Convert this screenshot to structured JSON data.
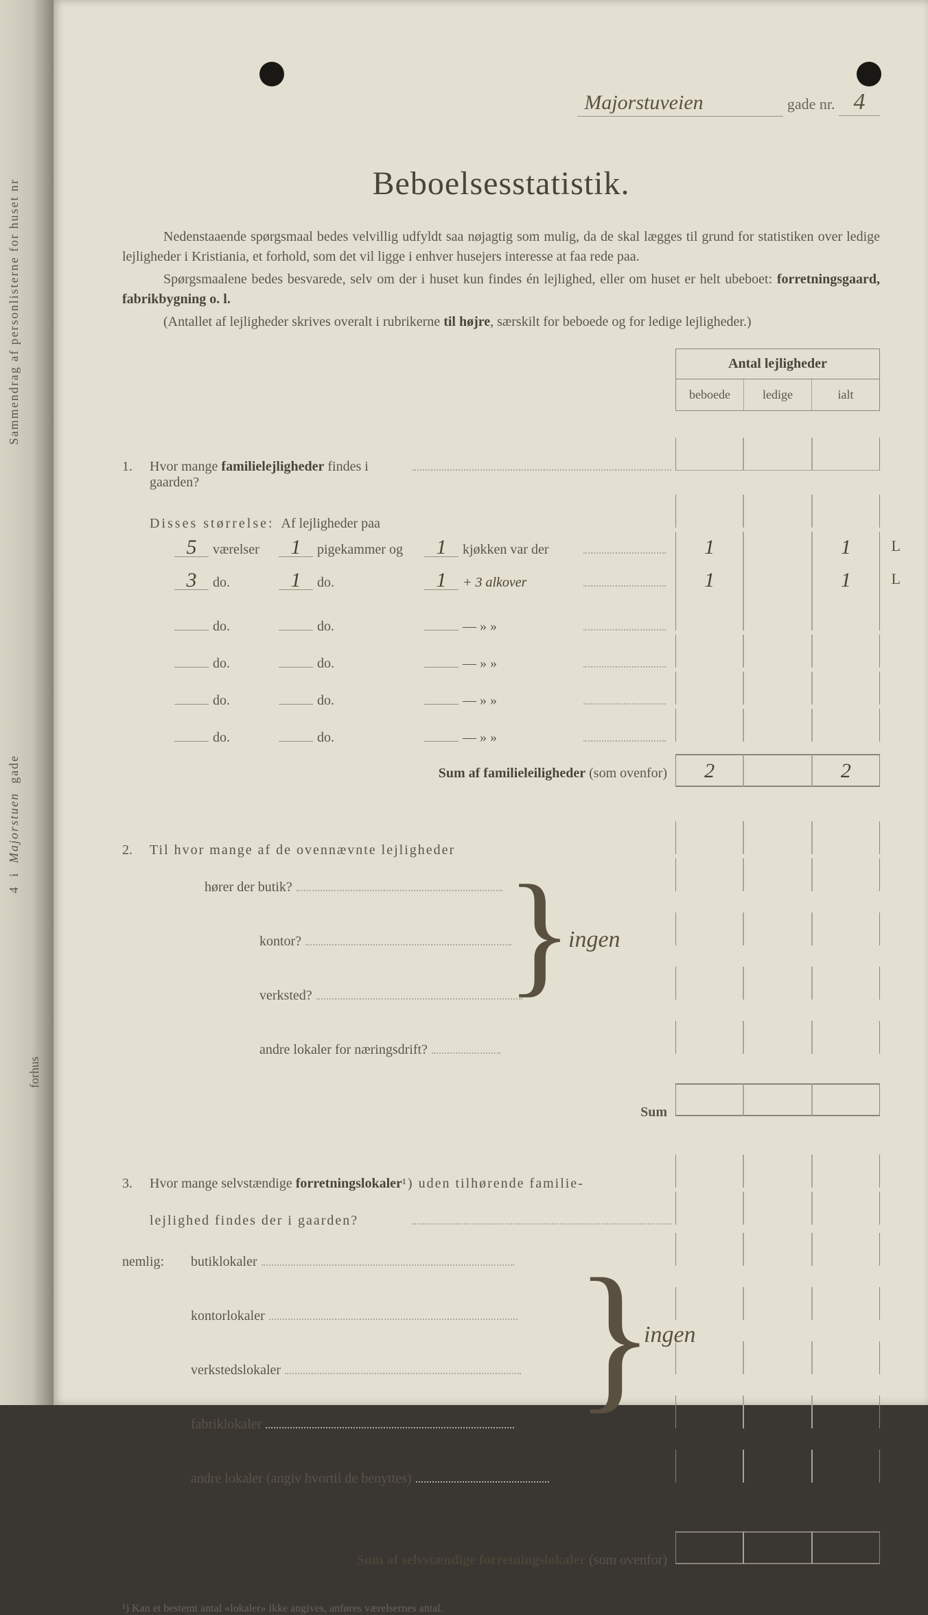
{
  "header": {
    "street_name": "Majorstuveien",
    "gade_label": "gade nr.",
    "gade_nr": "4"
  },
  "title": "Beboelsesstatistik.",
  "intro": {
    "p1": "Nedenstaaende spørgsmaal bedes velvillig udfyldt saa nøjagtig som mulig, da de skal lægges til grund for statistiken over ledige lejligheder i Kristiania, et forhold, som det vil ligge i enhver husejers interesse at faa rede paa.",
    "p2a": "Spørgsmaalene bedes besvarede, selv om der i huset kun findes én lejlighed, eller om huset er helt ubeboet: ",
    "p2b": "forretningsgaard, fabrikbygning o. l.",
    "p3": "(Antallet af lejligheder skrives overalt i rubrikerne til højre, særskilt for beboede og for ledige lejligheder.)"
  },
  "table_header": {
    "title": "Antal lejligheder",
    "col1": "beboede",
    "col2": "ledige",
    "col3": "ialt"
  },
  "q1": {
    "num": "1.",
    "text_a": "Hvor mange ",
    "text_b": "familielejligheder",
    "text_c": " findes i gaarden?",
    "disses": "Disses størrelse:",
    "af": "Af lejligheder paa",
    "rows": [
      {
        "v": "5",
        "vlabel": "værelser",
        "p": "1",
        "plabel": "pigekammer og",
        "k": "1",
        "klabel": "kjøkken var der",
        "note": "",
        "beboede": "1",
        "ledige": "",
        "ialt": "1",
        "margin": "L"
      },
      {
        "v": "3",
        "vlabel": "do.",
        "p": "1",
        "plabel": "do.",
        "k": "1",
        "klabel": "+ 3 alkover",
        "note": "",
        "beboede": "1",
        "ledige": "",
        "ialt": "1",
        "margin": "L"
      },
      {
        "v": "",
        "vlabel": "do.",
        "p": "",
        "plabel": "do.",
        "k": "",
        "klabel": "—    »   »",
        "note": "",
        "beboede": "",
        "ledige": "",
        "ialt": "",
        "margin": ""
      },
      {
        "v": "",
        "vlabel": "do.",
        "p": "",
        "plabel": "do.",
        "k": "",
        "klabel": "—    »   »",
        "note": "",
        "beboede": "",
        "ledige": "",
        "ialt": "",
        "margin": ""
      },
      {
        "v": "",
        "vlabel": "do.",
        "p": "",
        "plabel": "do.",
        "k": "",
        "klabel": "—    »   »",
        "note": "",
        "beboede": "",
        "ledige": "",
        "ialt": "",
        "margin": ""
      },
      {
        "v": "",
        "vlabel": "do.",
        "p": "",
        "plabel": "do.",
        "k": "",
        "klabel": "—    »   »",
        "note": "",
        "beboede": "",
        "ledige": "",
        "ialt": "",
        "margin": ""
      }
    ],
    "sum_label_a": "Sum af familieleiligheder",
    "sum_label_b": " (som ovenfor)",
    "sum": {
      "beboede": "2",
      "ledige": "",
      "ialt": "2"
    }
  },
  "q2": {
    "num": "2.",
    "text": "Til hvor mange af de ovennævnte lejligheder",
    "subs": [
      "hører der butik?",
      "kontor?",
      "verksted?",
      "andre lokaler for næringsdrift?"
    ],
    "answer": "ingen",
    "sum_label": "Sum"
  },
  "q3": {
    "num": "3.",
    "text_a": "Hvor mange selvstændige ",
    "text_b": "forretningslokaler",
    "text_c": "¹) uden tilhørende familie-",
    "text_d": "lejlighed findes der i gaarden?",
    "nemlig": "nemlig:",
    "subs": [
      "butiklokaler",
      "kontorlokaler",
      "verkstedslokaler",
      "fabriklokaler",
      "andre lokaler (angiv hvortil de benyttes)"
    ],
    "answer": "ingen",
    "sum_label_a": "Sum af selvstændige forretningslokaler",
    "sum_label_b": " (som ovenfor)"
  },
  "footnote": "¹)   Kan et bestemt antal «lokaler» ikke angives, anføres værelsernes antal.",
  "spine": {
    "text1": "Sammendrag af personlisterne for huset nr",
    "nr": "4",
    "i": "i",
    "street": "Majorstuen",
    "gade": "gade",
    "forhus": "forhus"
  },
  "colors": {
    "paper": "#e4e0d1",
    "ink": "#4a4538",
    "faded": "#5a5548",
    "handwriting": "#4a4030",
    "rule": "#8a8578"
  }
}
